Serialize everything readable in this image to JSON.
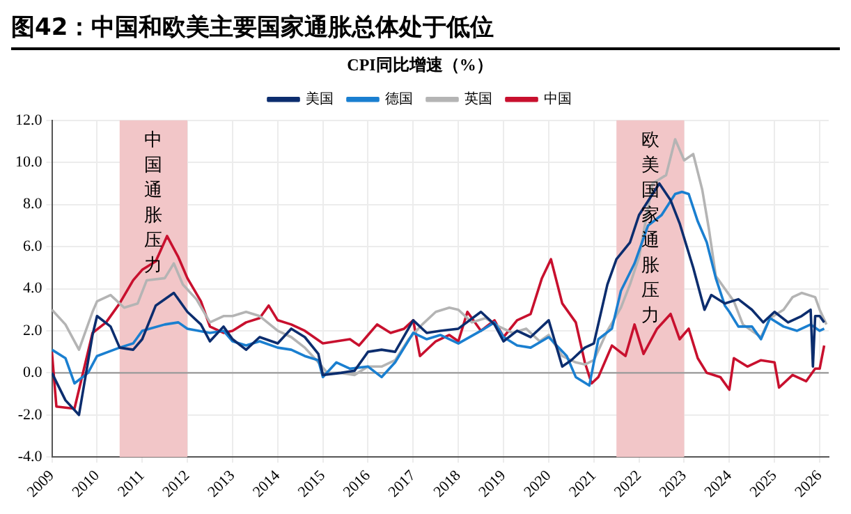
{
  "chart_data": {
    "type": "line",
    "title": "图42：中国和欧美主要国家通胀总体处于低位",
    "subtitle": "CPI同比增速（%）",
    "xlim": [
      2009,
      2026.2
    ],
    "xticks": [
      2009,
      2010,
      2011,
      2012,
      2013,
      2014,
      2015,
      2016,
      2017,
      2018,
      2019,
      2020,
      2021,
      2022,
      2023,
      2024,
      2025,
      2026
    ],
    "ylim": [
      -4,
      12
    ],
    "yticks": [
      {
        "value": -4,
        "label": "-4.0"
      },
      {
        "value": -2,
        "label": "-2.0"
      },
      {
        "value": 0,
        "label": "0.0"
      },
      {
        "value": 2,
        "label": "2.0"
      },
      {
        "value": 4,
        "label": "4.0"
      },
      {
        "value": 6,
        "label": "6.0"
      },
      {
        "value": 8,
        "label": "8.0"
      },
      {
        "value": 10,
        "label": "10.0"
      },
      {
        "value": 12,
        "label": "12.0"
      }
    ],
    "grid": true,
    "legend": "top",
    "marker": "none",
    "line_style": "solid",
    "ref_lines": [
      {
        "axis": "y",
        "value": 0,
        "color": "#999999"
      }
    ],
    "bands": [
      {
        "axis": "x",
        "from": 2010.5,
        "to": 2012.0,
        "label": "中国通胀压力",
        "color": "#f2c6c8"
      },
      {
        "axis": "x",
        "from": 2021.5,
        "to": 2023.0,
        "label": "欧美国家通胀压力",
        "color": "#f2c6c8"
      }
    ],
    "series": [
      {
        "name": "美国",
        "color": "#0c2d6e",
        "x": [
          2009.0,
          2009.3,
          2009.6,
          2009.9,
          2010.0,
          2010.3,
          2010.5,
          2010.8,
          2011.0,
          2011.3,
          2011.7,
          2012.0,
          2012.3,
          2012.5,
          2012.8,
          2013.0,
          2013.3,
          2013.6,
          2014.0,
          2014.3,
          2014.6,
          2014.9,
          2015.0,
          2015.4,
          2015.7,
          2016.0,
          2016.3,
          2016.6,
          2017.0,
          2017.3,
          2017.6,
          2018.0,
          2018.5,
          2018.8,
          2019.0,
          2019.3,
          2019.6,
          2020.0,
          2020.3,
          2020.5,
          2020.8,
          2021.0,
          2021.3,
          2021.5,
          2021.8,
          2022.0,
          2022.45,
          2022.7,
          2022.9,
          2023.2,
          2023.45,
          2023.6,
          2023.9,
          2024.2,
          2024.5,
          2024.75,
          2025.0,
          2025.3,
          2025.6,
          2025.8,
          2025.85,
          2025.9,
          2026.0,
          2026.1
        ],
        "values": [
          0.0,
          -1.3,
          -2.0,
          1.8,
          2.7,
          2.2,
          1.2,
          1.1,
          1.6,
          3.2,
          3.8,
          2.9,
          2.3,
          1.5,
          2.2,
          1.6,
          1.1,
          1.7,
          1.4,
          2.1,
          1.7,
          0.9,
          -0.1,
          0.0,
          0.1,
          1.0,
          1.1,
          1.0,
          2.5,
          1.9,
          2.0,
          2.1,
          2.9,
          2.3,
          1.5,
          2.0,
          1.7,
          2.5,
          0.3,
          0.6,
          1.2,
          1.4,
          4.2,
          5.4,
          6.2,
          7.5,
          9.0,
          8.2,
          7.1,
          5.0,
          3.0,
          3.7,
          3.3,
          3.5,
          3.0,
          2.4,
          2.9,
          2.4,
          2.7,
          3.0,
          0.3,
          2.7,
          2.7,
          2.4
        ]
      },
      {
        "name": "德国",
        "color": "#1a7fd0",
        "x": [
          2009.0,
          2009.3,
          2009.5,
          2009.8,
          2010.0,
          2010.5,
          2010.8,
          2011.0,
          2011.5,
          2011.8,
          2012.0,
          2012.5,
          2012.8,
          2013.0,
          2013.3,
          2013.6,
          2014.0,
          2014.3,
          2014.6,
          2014.9,
          2015.0,
          2015.3,
          2015.6,
          2016.0,
          2016.3,
          2016.6,
          2017.0,
          2017.3,
          2017.6,
          2018.0,
          2018.5,
          2018.8,
          2019.0,
          2019.3,
          2019.6,
          2020.0,
          2020.4,
          2020.6,
          2020.9,
          2021.1,
          2021.4,
          2021.6,
          2021.9,
          2022.2,
          2022.5,
          2022.8,
          2022.95,
          2023.1,
          2023.3,
          2023.5,
          2023.7,
          2023.9,
          2024.0,
          2024.2,
          2024.5,
          2024.7,
          2024.9,
          2025.2,
          2025.5,
          2025.8,
          2026.0,
          2026.1
        ],
        "values": [
          1.1,
          0.7,
          -0.5,
          0.0,
          0.8,
          1.2,
          1.4,
          2.0,
          2.3,
          2.4,
          2.1,
          1.9,
          2.0,
          1.5,
          1.3,
          1.5,
          1.2,
          1.1,
          0.8,
          0.6,
          -0.2,
          0.5,
          0.2,
          0.3,
          -0.2,
          0.5,
          1.9,
          1.6,
          1.8,
          1.4,
          2.0,
          2.4,
          1.7,
          1.3,
          1.2,
          1.7,
          0.8,
          -0.2,
          -0.6,
          1.6,
          2.1,
          3.9,
          5.2,
          7.0,
          7.5,
          8.5,
          8.6,
          8.5,
          7.2,
          6.2,
          4.5,
          3.2,
          2.9,
          2.2,
          2.2,
          1.6,
          2.6,
          2.2,
          2.0,
          2.3,
          2.0,
          2.1
        ]
      },
      {
        "name": "英国",
        "color": "#b4b4b4",
        "x": [
          2009.0,
          2009.3,
          2009.6,
          2009.9,
          2010.0,
          2010.3,
          2010.6,
          2010.9,
          2011.1,
          2011.5,
          2011.7,
          2011.9,
          2012.2,
          2012.5,
          2012.8,
          2013.0,
          2013.3,
          2013.6,
          2014.0,
          2014.3,
          2014.6,
          2014.9,
          2015.1,
          2015.4,
          2015.7,
          2016.0,
          2016.3,
          2016.6,
          2016.9,
          2017.2,
          2017.5,
          2017.8,
          2018.0,
          2018.3,
          2018.6,
          2018.9,
          2019.2,
          2019.5,
          2019.8,
          2020.0,
          2020.3,
          2020.6,
          2020.8,
          2021.0,
          2021.3,
          2021.6,
          2021.8,
          2022.0,
          2022.3,
          2022.6,
          2022.8,
          2023.0,
          2023.2,
          2023.4,
          2023.55,
          2023.7,
          2023.9,
          2024.1,
          2024.3,
          2024.5,
          2024.7,
          2024.9,
          2025.2,
          2025.4,
          2025.6,
          2025.9,
          2026.0,
          2026.15
        ],
        "values": [
          3.0,
          2.3,
          1.1,
          2.9,
          3.4,
          3.7,
          3.1,
          3.3,
          4.4,
          4.5,
          5.2,
          4.2,
          3.5,
          2.4,
          2.7,
          2.7,
          2.9,
          2.7,
          2.0,
          1.7,
          1.2,
          0.5,
          0.0,
          0.0,
          -0.1,
          0.3,
          0.3,
          0.6,
          1.6,
          2.3,
          2.9,
          3.1,
          3.0,
          2.4,
          2.6,
          2.2,
          1.9,
          2.1,
          1.5,
          1.8,
          0.8,
          0.5,
          0.4,
          0.6,
          2.0,
          3.1,
          4.2,
          5.5,
          9.0,
          9.4,
          11.1,
          10.1,
          10.4,
          8.7,
          6.8,
          4.6,
          4.0,
          3.4,
          2.3,
          2.0,
          1.7,
          2.6,
          3.0,
          3.6,
          3.8,
          3.6,
          3.0,
          2.3
        ]
      },
      {
        "name": "中国",
        "color": "#c8102e",
        "x": [
          2009.0,
          2009.1,
          2009.5,
          2009.9,
          2010.2,
          2010.5,
          2010.8,
          2011.0,
          2011.3,
          2011.55,
          2011.8,
          2012.0,
          2012.3,
          2012.5,
          2012.8,
          2013.0,
          2013.3,
          2013.6,
          2013.8,
          2014.0,
          2014.3,
          2014.6,
          2015.0,
          2015.3,
          2015.6,
          2015.8,
          2016.0,
          2016.2,
          2016.5,
          2016.8,
          2017.0,
          2017.15,
          2017.5,
          2017.8,
          2018.0,
          2018.2,
          2018.5,
          2018.8,
          2019.0,
          2019.3,
          2019.6,
          2019.85,
          2020.05,
          2020.3,
          2020.6,
          2020.8,
          2020.95,
          2021.1,
          2021.4,
          2021.7,
          2021.9,
          2022.1,
          2022.4,
          2022.7,
          2022.9,
          2023.1,
          2023.3,
          2023.5,
          2023.8,
          2024.0,
          2024.1,
          2024.4,
          2024.7,
          2025.0,
          2025.1,
          2025.4,
          2025.7,
          2025.9,
          2026.0,
          2026.1
        ],
        "values": [
          1.0,
          -1.6,
          -1.7,
          1.9,
          2.4,
          3.3,
          4.4,
          4.9,
          5.3,
          6.5,
          5.5,
          4.5,
          3.4,
          2.2,
          1.9,
          2.0,
          2.4,
          2.6,
          3.2,
          2.5,
          2.3,
          2.0,
          1.4,
          1.5,
          1.6,
          1.3,
          1.8,
          2.3,
          1.9,
          2.1,
          2.5,
          0.8,
          1.5,
          1.8,
          1.5,
          2.9,
          2.0,
          2.5,
          1.7,
          2.5,
          2.8,
          4.5,
          5.4,
          3.3,
          2.4,
          0.5,
          -0.5,
          -0.2,
          1.3,
          0.8,
          2.3,
          0.9,
          2.1,
          2.8,
          1.6,
          2.1,
          0.7,
          0.0,
          -0.2,
          -0.8,
          0.7,
          0.3,
          0.6,
          0.5,
          -0.7,
          -0.1,
          -0.4,
          0.2,
          0.2,
          1.3
        ]
      }
    ]
  }
}
